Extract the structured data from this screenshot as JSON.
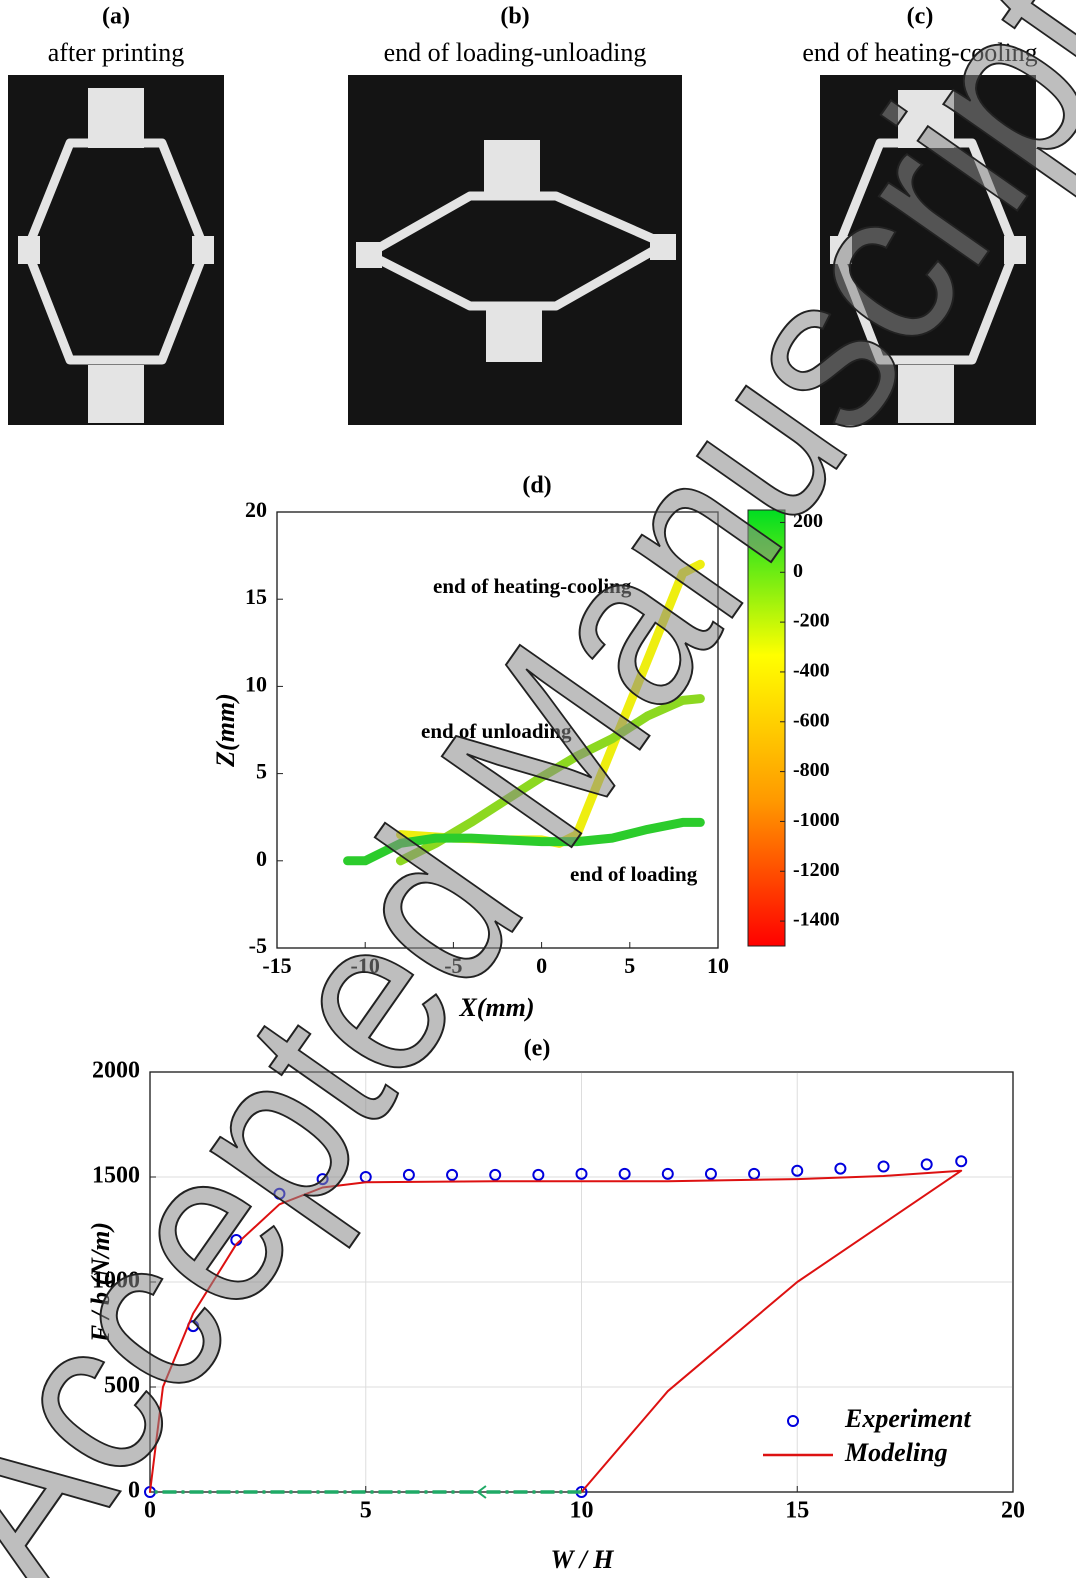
{
  "panels": [
    {
      "label": "(a)",
      "caption": "after printing"
    },
    {
      "label": "(b)",
      "caption": "end of loading-unloading"
    },
    {
      "label": "(c)",
      "caption": "end of heating-cooling"
    }
  ],
  "watermark": "Accepted Manuscript",
  "chart_data": [
    {
      "type": "line",
      "title": "(d)",
      "x_label": "X(mm)",
      "y_label": "Z(mm)",
      "xlim": [
        -15,
        10
      ],
      "ylim": [
        -5,
        20
      ],
      "xticks": [
        -15,
        -10,
        -5,
        0,
        5,
        10
      ],
      "yticks": [
        -5,
        0,
        5,
        10,
        15,
        20
      ],
      "grid": false,
      "annotations": [
        "end of heating-cooling",
        "end of unloading",
        "end of loading"
      ],
      "series": [
        {
          "color": "#eeee10",
          "mode": "line",
          "x": [
            -8,
            -5,
            -2,
            0,
            1,
            2,
            3,
            5,
            7,
            8,
            9
          ],
          "y": [
            1.5,
            1.3,
            1.2,
            1.2,
            1,
            1.5,
            4,
            9,
            14,
            16.5,
            17
          ]
        },
        {
          "color": "#8cd820",
          "mode": "line",
          "x": [
            -8,
            -6,
            -4,
            -2,
            0,
            2,
            4,
            6,
            8,
            9
          ],
          "y": [
            0,
            1,
            2.2,
            3.5,
            4.8,
            6,
            7,
            8.3,
            9.2,
            9.3
          ]
        },
        {
          "color": "#2ccc2c",
          "mode": "line",
          "x": [
            -11,
            -10,
            -8,
            -6,
            -4,
            -2,
            0,
            2,
            4,
            6,
            8,
            9
          ],
          "y": [
            0,
            0,
            1,
            1.3,
            1.3,
            1.2,
            1.1,
            1.1,
            1.3,
            1.8,
            2.2,
            2.2
          ]
        }
      ],
      "colorbar": {
        "lim": [
          -1500,
          250
        ],
        "ticks": [
          200,
          0,
          -200,
          -400,
          -600,
          -800,
          -1000,
          -1200,
          -1400
        ],
        "colors": [
          "#ff0000",
          "#ff9900",
          "#ffff00",
          "#00dd22"
        ]
      }
    },
    {
      "type": "line",
      "title": "(e)",
      "x_label": "W / H",
      "y_label": "F / b (N/m)",
      "xlim": [
        0,
        20
      ],
      "ylim": [
        0,
        2000
      ],
      "xticks": [
        0,
        5,
        10,
        15,
        20
      ],
      "yticks": [
        0,
        500,
        1000,
        1500,
        2000
      ],
      "grid": true,
      "legend": "lower right",
      "series": [
        {
          "name": "Experiment",
          "color": "#0000dd",
          "mode": "markers",
          "x": [
            0,
            1,
            2,
            3,
            4,
            5,
            6,
            7,
            8,
            9,
            10,
            11,
            12,
            13,
            14,
            15,
            16,
            17,
            18,
            18.8,
            10
          ],
          "y": [
            0,
            790,
            1200,
            1420,
            1490,
            1500,
            1510,
            1510,
            1510,
            1510,
            1515,
            1515,
            1515,
            1515,
            1515,
            1530,
            1540,
            1550,
            1560,
            1575,
            0
          ]
        },
        {
          "name": "Modeling",
          "color": "#dd1111",
          "mode": "line",
          "x": [
            0,
            0.3,
            1,
            2,
            3,
            4,
            5,
            8,
            12,
            15,
            17,
            18.8,
            15,
            12,
            10
          ],
          "y": [
            0,
            500,
            850,
            1180,
            1370,
            1450,
            1475,
            1480,
            1480,
            1490,
            1505,
            1530,
            1000,
            480,
            0
          ]
        },
        {
          "color": "#1faa66",
          "mode": "line",
          "dash": "dashdot",
          "x": [
            10,
            0
          ],
          "y": [
            0,
            0
          ]
        }
      ]
    }
  ]
}
